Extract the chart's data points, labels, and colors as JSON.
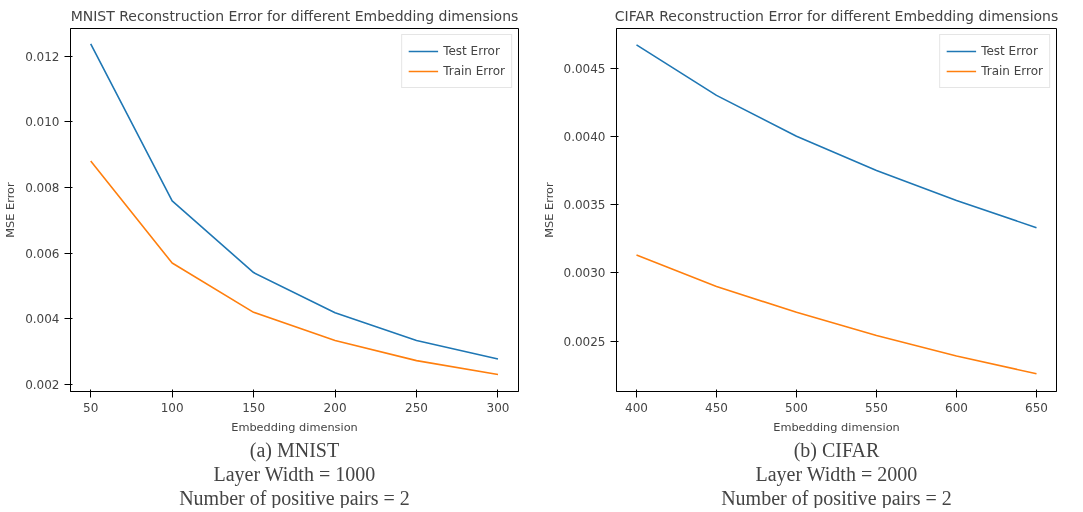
{
  "chart_data": [
    {
      "type": "line",
      "title": "MNIST Reconstruction Error for different Embedding dimensions",
      "xlabel": "Embedding dimension",
      "ylabel": "MSE Error",
      "x": [
        50,
        100,
        150,
        200,
        250,
        300
      ],
      "series": [
        {
          "name": "Test Error",
          "color": "#1f77b4",
          "values": [
            0.01237,
            0.00759,
            0.00541,
            0.00419,
            0.00334,
            0.00278
          ]
        },
        {
          "name": "Train Error",
          "color": "#ff7f0e",
          "values": [
            0.00881,
            0.0057,
            0.0042,
            0.00334,
            0.00273,
            0.00231
          ]
        }
      ],
      "xlim": [
        37.6,
        312.6
      ],
      "ylim": [
        0.00179,
        0.01284
      ],
      "xticks": [
        50,
        100,
        150,
        200,
        250,
        300
      ],
      "yticks": [
        {
          "value": 0.002,
          "label": "0.002"
        },
        {
          "value": 0.004,
          "label": "0.004"
        },
        {
          "value": 0.006,
          "label": "0.006"
        },
        {
          "value": 0.008,
          "label": "0.008"
        },
        {
          "value": 0.01,
          "label": "0.010"
        },
        {
          "value": 0.012,
          "label": "0.012"
        }
      ],
      "grid": false,
      "legend": "top right",
      "line_style": "solid",
      "annotations": [
        "(a) MNIST",
        "Layer Width = 1000",
        "Number of positive pairs = 2"
      ]
    },
    {
      "type": "line",
      "title": "CIFAR Reconstruction Error for different Embedding dimensions",
      "xlabel": "Embedding dimension",
      "ylabel": "MSE Error",
      "x": [
        400,
        450,
        500,
        550,
        600,
        650
      ],
      "series": [
        {
          "name": "Test Error",
          "color": "#1f77b4",
          "values": [
            0.00467,
            0.0043,
            0.004,
            0.00375,
            0.00353,
            0.00333
          ]
        },
        {
          "name": "Train Error",
          "color": "#ff7f0e",
          "values": [
            0.00313,
            0.0029,
            0.00271,
            0.00254,
            0.00239,
            0.00226
          ]
        }
      ],
      "xlim": [
        387.5,
        662.5
      ],
      "ylim": [
        0.00213,
        0.00479
      ],
      "xticks": [
        400,
        450,
        500,
        550,
        600,
        650
      ],
      "yticks": [
        {
          "value": 0.0025,
          "label": "0.0025"
        },
        {
          "value": 0.003,
          "label": "0.0030"
        },
        {
          "value": 0.0035,
          "label": "0.0035"
        },
        {
          "value": 0.004,
          "label": "0.0040"
        },
        {
          "value": 0.0045,
          "label": "0.0045"
        }
      ],
      "grid": false,
      "legend": "top right",
      "line_style": "solid",
      "annotations": [
        "(b) CIFAR",
        "Layer Width = 2000",
        "Number of positive pairs = 2"
      ]
    }
  ]
}
